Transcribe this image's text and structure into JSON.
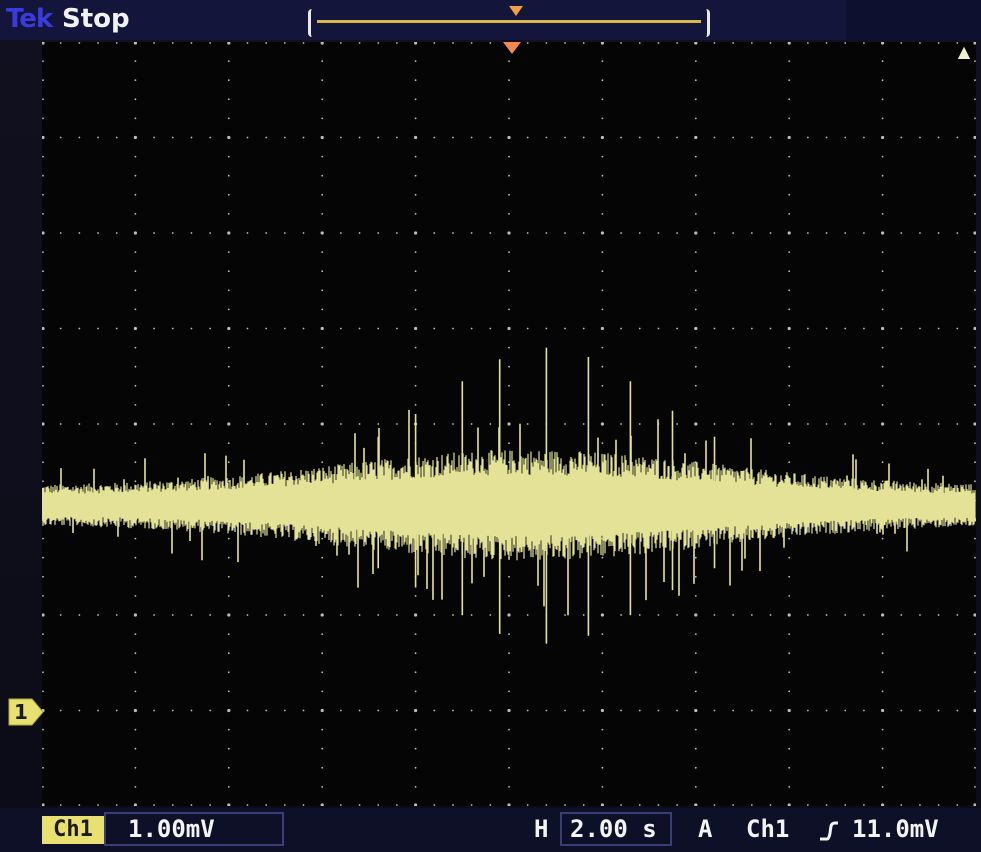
{
  "topbar": {
    "brand": "Tek",
    "run_state": "Stop"
  },
  "bottombar": {
    "channel": "Ch1",
    "vertical_scale": "1.00mV",
    "horizontal_label": "H",
    "horizontal_scale": "2.00 s",
    "trigger_mode": "A",
    "trigger_source": "Ch1",
    "trigger_slope_icon": "rising-edge-icon",
    "trigger_level": "11.0mV"
  },
  "ground_marker": {
    "label": "1"
  },
  "colors": {
    "trace": "#e4e296",
    "grid_dots": "#bdbdbd",
    "accent": "#f08a50",
    "channel_badge": "#e8e070"
  },
  "waveform": {
    "description_free": true,
    "baseline_div_from_top": 4.85,
    "max_envelope_divisions": 0.9,
    "spike_count": 9
  }
}
